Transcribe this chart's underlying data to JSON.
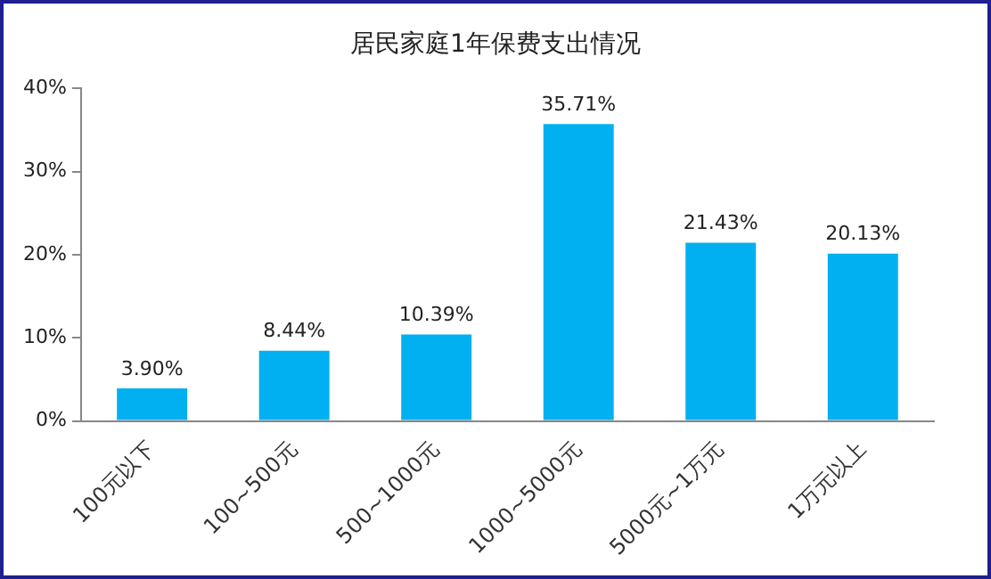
{
  "chart_data": {
    "type": "bar",
    "title": "居民家庭1年保费支出情况",
    "categories": [
      "100元以下",
      "100~500元",
      "500~1000元",
      "1000~5000元",
      "5000元~1万元",
      "1万元以上"
    ],
    "values": [
      3.9,
      8.44,
      10.39,
      35.71,
      21.43,
      20.13
    ],
    "value_labels": [
      "3.90%",
      "8.44%",
      "10.39%",
      "35.71%",
      "21.43%",
      "20.13%"
    ],
    "color": "#00b0f0",
    "ylim": [
      0,
      40
    ],
    "yticks": [
      {
        "value": 0,
        "label": "0%"
      },
      {
        "value": 10,
        "label": "10%"
      },
      {
        "value": 20,
        "label": "20%"
      },
      {
        "value": 30,
        "label": "30%"
      },
      {
        "value": 40,
        "label": "40%"
      }
    ],
    "grid": false,
    "legend": false
  }
}
